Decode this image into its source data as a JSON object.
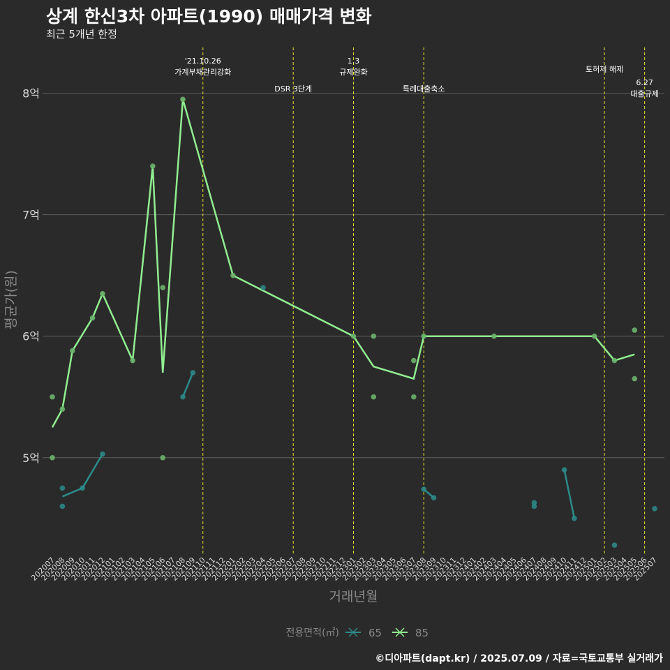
{
  "colors": {
    "background": "#2b2a2a",
    "grid": "#5e5e5e",
    "event_line": "#e6e22a",
    "series_65": "#2b8c8a",
    "series_85": "#90ee90",
    "axis_text": "#d9d9d9",
    "axis_title": "#8a8a8a"
  },
  "chart_data": {
    "type": "line",
    "title": "상계 한신3차 아파트(1990) 매매가격 변화",
    "subtitle": "최근 5개년 한정",
    "xlabel": "거래년월",
    "ylabel": "평균가(원)",
    "caption": "©디아파트(dapt.kr) / 2025.07.09 / 자료=국토교통부 실거래가",
    "legend": {
      "title": "전용면적(㎡)",
      "position": "bottom",
      "entries": [
        "65",
        "85"
      ]
    },
    "x_categories": [
      "202007",
      "202008",
      "202009",
      "202010",
      "202011",
      "202012",
      "202101",
      "202102",
      "202103",
      "202104",
      "202105",
      "202106",
      "202107",
      "202108",
      "202109",
      "202110",
      "202111",
      "202112",
      "202201",
      "202202",
      "202203",
      "202204",
      "202205",
      "202206",
      "202207",
      "202208",
      "202209",
      "202210",
      "202211",
      "202212",
      "202301",
      "202302",
      "202303",
      "202304",
      "202305",
      "202306",
      "202307",
      "202308",
      "202309",
      "202310",
      "202311",
      "202312",
      "202401",
      "202402",
      "202403",
      "202404",
      "202405",
      "202406",
      "202407",
      "202408",
      "202409",
      "202410",
      "202411",
      "202412",
      "202501",
      "202502",
      "202503",
      "202504",
      "202505",
      "202506",
      "202507"
    ],
    "ylim": [
      4.2,
      8.4
    ],
    "y_ticks": [
      5,
      6,
      7,
      8
    ],
    "y_tick_labels": [
      "5억",
      "6억",
      "7억",
      "8억"
    ],
    "grid": true,
    "series": [
      {
        "name": "65",
        "line_segments": [
          [
            [
              "202008",
              4.68
            ],
            [
              "202010",
              4.75
            ],
            [
              "202012",
              5.03
            ]
          ],
          [
            [
              "202108",
              5.5
            ],
            [
              "202109",
              5.7
            ]
          ],
          [
            [
              "202308",
              4.74
            ],
            [
              "202309",
              4.67
            ]
          ],
          [
            [
              "202410",
              4.9
            ],
            [
              "202411",
              4.5
            ]
          ]
        ],
        "points": [
          [
            "202008",
            4.75
          ],
          [
            "202008",
            4.6
          ],
          [
            "202010",
            4.75
          ],
          [
            "202012",
            5.03
          ],
          [
            "202108",
            5.5
          ],
          [
            "202109",
            5.7
          ],
          [
            "202204",
            6.4
          ],
          [
            "202308",
            4.74
          ],
          [
            "202309",
            4.67
          ],
          [
            "202407",
            4.63
          ],
          [
            "202407",
            4.6
          ],
          [
            "202410",
            4.9
          ],
          [
            "202411",
            4.5
          ],
          [
            "202503",
            4.28
          ],
          [
            "202507",
            4.58
          ]
        ]
      },
      {
        "name": "85",
        "line": [
          [
            "202007",
            5.25
          ],
          [
            "202008",
            5.4
          ],
          [
            "202009",
            5.88
          ],
          [
            "202011",
            6.15
          ],
          [
            "202012",
            6.35
          ],
          [
            "202103",
            5.8
          ],
          [
            "202105",
            7.4
          ],
          [
            "202106",
            5.7
          ],
          [
            "202108",
            7.95
          ],
          [
            "202201",
            6.5
          ],
          [
            "202301",
            6.0
          ],
          [
            "202303",
            5.75
          ],
          [
            "202307",
            5.65
          ],
          [
            "202308",
            6.0
          ],
          [
            "202501",
            6.0
          ],
          [
            "202503",
            5.8
          ],
          [
            "202505",
            5.85
          ]
        ],
        "points": [
          [
            "202007",
            5.5
          ],
          [
            "202007",
            5.0
          ],
          [
            "202008",
            5.4
          ],
          [
            "202009",
            5.88
          ],
          [
            "202011",
            6.15
          ],
          [
            "202012",
            6.35
          ],
          [
            "202103",
            5.8
          ],
          [
            "202105",
            7.4
          ],
          [
            "202106",
            6.4
          ],
          [
            "202106",
            5.0
          ],
          [
            "202108",
            7.95
          ],
          [
            "202201",
            6.5
          ],
          [
            "202301",
            6.0
          ],
          [
            "202303",
            6.0
          ],
          [
            "202303",
            5.5
          ],
          [
            "202307",
            5.8
          ],
          [
            "202307",
            5.5
          ],
          [
            "202308",
            6.0
          ],
          [
            "202403",
            6.0
          ],
          [
            "202501",
            6.0
          ],
          [
            "202503",
            5.8
          ],
          [
            "202505",
            6.05
          ],
          [
            "202505",
            5.65
          ]
        ]
      }
    ],
    "annotations": [
      {
        "x": "202110",
        "lines": [
          "'21.10.26",
          "가계부채관리강화"
        ],
        "row": "top"
      },
      {
        "x": "202207",
        "lines": [
          "DSR 3단계"
        ],
        "row": "lower"
      },
      {
        "x": "202301",
        "lines": [
          "1.3",
          "규제완화"
        ],
        "row": "top"
      },
      {
        "x": "202308",
        "lines": [
          "특례대출축소"
        ],
        "row": "lower"
      },
      {
        "x": "202502",
        "lines": [
          "토허제 해제"
        ],
        "row": "mid"
      },
      {
        "x": "202506",
        "lines": [
          "6.27",
          "대출규제"
        ],
        "row": "lower2"
      }
    ]
  }
}
